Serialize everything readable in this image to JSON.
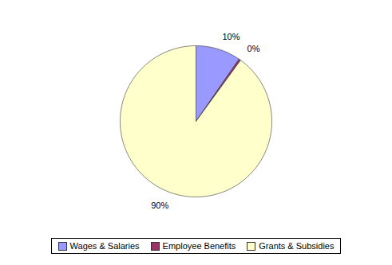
{
  "chart_data": {
    "type": "pie",
    "categories": [
      "Wages & Salaries",
      "Employee Benefits",
      "Grants & Subsidies"
    ],
    "values": [
      9.6,
      0.4,
      90
    ],
    "value_labels": [
      "10%",
      "0%",
      "90%"
    ],
    "colors": [
      "#9999ff",
      "#993366",
      "#ffffcc"
    ],
    "data_labels": true,
    "legend": "bottom"
  }
}
